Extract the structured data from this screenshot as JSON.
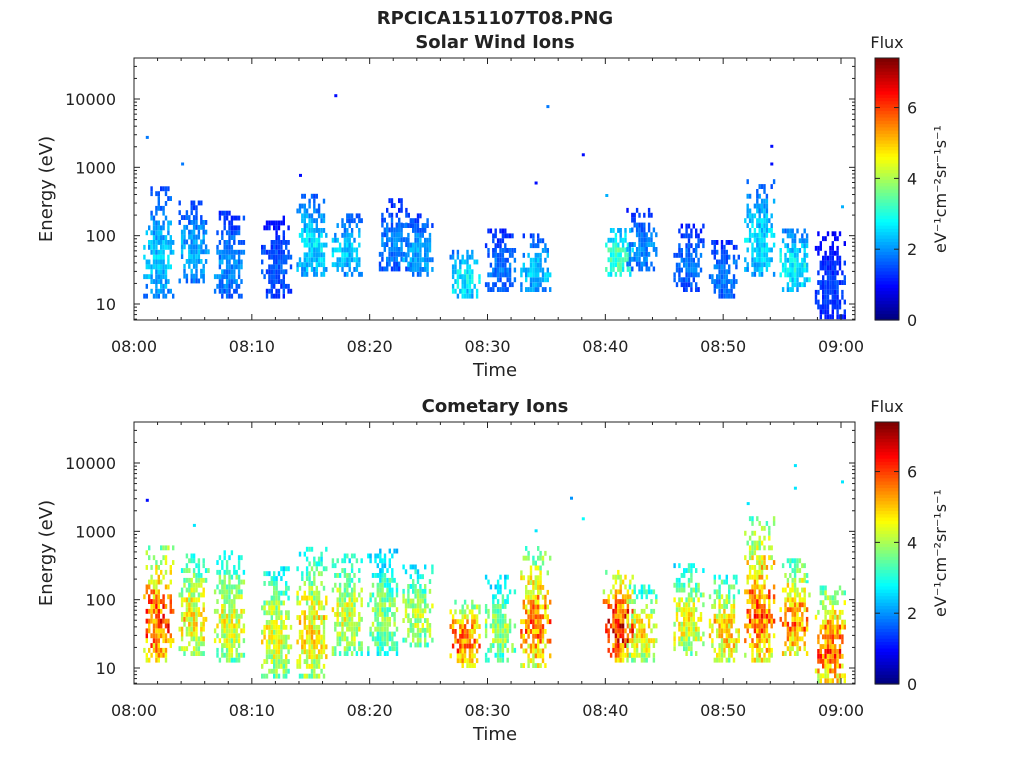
{
  "file_title": "RPCICA151107T08.PNG",
  "chart_data": [
    {
      "type": "heatmap",
      "title": "Solar Wind Ions",
      "xlabel": "Time",
      "ylabel": "Energy (eV)",
      "x_ticks": [
        "08:00",
        "08:10",
        "08:20",
        "08:30",
        "08:40",
        "08:50",
        "09:00"
      ],
      "y_ticks": [
        "10",
        "100",
        "1000",
        "10000"
      ],
      "y_scale": "log",
      "xlim": [
        "08:00",
        "09:00"
      ],
      "ylim": [
        6,
        45000
      ],
      "colorbar": {
        "label": "Flux",
        "unit": "eV⁻¹cm⁻²sr⁻¹s⁻¹",
        "ticks": [
          "0",
          "2",
          "4",
          "6"
        ],
        "range": [
          0,
          7.4
        ],
        "colormap": "jet"
      },
      "clusters": [
        {
          "time": "08:02",
          "e_low": 12,
          "e_high": 450,
          "flux": 2.4
        },
        {
          "time": "08:05",
          "e_low": 20,
          "e_high": 300,
          "flux": 2.2
        },
        {
          "time": "08:08",
          "e_low": 12,
          "e_high": 220,
          "flux": 2.0
        },
        {
          "time": "08:12",
          "e_low": 12,
          "e_high": 180,
          "flux": 1.6
        },
        {
          "time": "08:15",
          "e_low": 25,
          "e_high": 350,
          "flux": 2.6
        },
        {
          "time": "08:18",
          "e_low": 25,
          "e_high": 200,
          "flux": 2.4
        },
        {
          "time": "08:22",
          "e_low": 30,
          "e_high": 300,
          "flux": 1.9
        },
        {
          "time": "08:24",
          "e_low": 25,
          "e_high": 200,
          "flux": 2.2
        },
        {
          "time": "08:28",
          "e_low": 12,
          "e_high": 60,
          "flux": 2.8
        },
        {
          "time": "08:31",
          "e_low": 15,
          "e_high": 120,
          "flux": 1.8
        },
        {
          "time": "08:34",
          "e_low": 15,
          "e_high": 100,
          "flux": 2.4
        },
        {
          "time": "08:41",
          "e_low": 25,
          "e_high": 120,
          "flux": 3.4
        },
        {
          "time": "08:43",
          "e_low": 30,
          "e_high": 220,
          "flux": 2.0
        },
        {
          "time": "08:47",
          "e_low": 15,
          "e_high": 150,
          "flux": 1.8
        },
        {
          "time": "08:50",
          "e_low": 12,
          "e_high": 80,
          "flux": 1.9
        },
        {
          "time": "08:53",
          "e_low": 25,
          "e_high": 600,
          "flux": 2.6
        },
        {
          "time": "08:56",
          "e_low": 15,
          "e_high": 120,
          "flux": 2.8
        },
        {
          "time": "08:59",
          "e_low": 6,
          "e_high": 100,
          "flux": 1.4
        }
      ],
      "isolated": [
        {
          "time": "08:01",
          "energy": 2700,
          "flux": 1.8
        },
        {
          "time": "08:04",
          "energy": 1100,
          "flux": 1.8
        },
        {
          "time": "08:14",
          "energy": 750,
          "flux": 1.0
        },
        {
          "time": "08:17",
          "energy": 11000,
          "flux": 1.0
        },
        {
          "time": "08:35",
          "energy": 7600,
          "flux": 1.8
        },
        {
          "time": "08:34",
          "energy": 580,
          "flux": 1.0
        },
        {
          "time": "08:38",
          "energy": 1500,
          "flux": 1.0
        },
        {
          "time": "08:40",
          "energy": 380,
          "flux": 2.2
        },
        {
          "time": "08:54",
          "energy": 2000,
          "flux": 1.0
        },
        {
          "time": "08:54",
          "energy": 1100,
          "flux": 1.0
        },
        {
          "time": "09:00",
          "energy": 260,
          "flux": 2.2
        }
      ]
    },
    {
      "type": "heatmap",
      "title": "Cometary Ions",
      "xlabel": "Time",
      "ylabel": "Energy (eV)",
      "x_ticks": [
        "08:00",
        "08:10",
        "08:20",
        "08:30",
        "08:40",
        "08:50",
        "09:00"
      ],
      "y_ticks": [
        "10",
        "100",
        "1000",
        "10000"
      ],
      "y_scale": "log",
      "xlim": [
        "08:00",
        "09:00"
      ],
      "ylim": [
        6,
        45000
      ],
      "colorbar": {
        "label": "Flux",
        "unit": "eV⁻¹cm⁻²sr⁻¹s⁻¹",
        "ticks": [
          "0",
          "2",
          "4",
          "6"
        ],
        "range": [
          0,
          7.4
        ],
        "colormap": "jet"
      },
      "clusters": [
        {
          "time": "08:02",
          "e_low": 12,
          "e_high": 550,
          "flux": 6.0
        },
        {
          "time": "08:05",
          "e_low": 15,
          "e_high": 450,
          "flux": 4.8
        },
        {
          "time": "08:08",
          "e_low": 12,
          "e_high": 500,
          "flux": 4.5
        },
        {
          "time": "08:12",
          "e_low": 7,
          "e_high": 300,
          "flux": 4.5
        },
        {
          "time": "08:15",
          "e_low": 7,
          "e_high": 550,
          "flux": 4.8
        },
        {
          "time": "08:18",
          "e_low": 15,
          "e_high": 550,
          "flux": 4.4
        },
        {
          "time": "08:21",
          "e_low": 15,
          "e_high": 550,
          "flux": 3.8
        },
        {
          "time": "08:24",
          "e_low": 20,
          "e_high": 300,
          "flux": 4.2
        },
        {
          "time": "08:28",
          "e_low": 10,
          "e_high": 90,
          "flux": 5.8
        },
        {
          "time": "08:31",
          "e_low": 12,
          "e_high": 200,
          "flux": 4.0
        },
        {
          "time": "08:34",
          "e_low": 10,
          "e_high": 600,
          "flux": 5.6
        },
        {
          "time": "08:41",
          "e_low": 12,
          "e_high": 250,
          "flux": 6.4
        },
        {
          "time": "08:43",
          "e_low": 12,
          "e_high": 150,
          "flux": 4.8
        },
        {
          "time": "08:47",
          "e_low": 15,
          "e_high": 300,
          "flux": 4.6
        },
        {
          "time": "08:50",
          "e_low": 12,
          "e_high": 200,
          "flux": 5.0
        },
        {
          "time": "08:53",
          "e_low": 12,
          "e_high": 1500,
          "flux": 5.8
        },
        {
          "time": "08:56",
          "e_low": 15,
          "e_high": 350,
          "flux": 5.6
        },
        {
          "time": "08:59",
          "e_low": 6,
          "e_high": 150,
          "flux": 5.8
        }
      ],
      "isolated": [
        {
          "time": "08:01",
          "energy": 2800,
          "flux": 1.0
        },
        {
          "time": "08:05",
          "energy": 1200,
          "flux": 2.6
        },
        {
          "time": "08:34",
          "energy": 1000,
          "flux": 2.6
        },
        {
          "time": "08:37",
          "energy": 3000,
          "flux": 2.0
        },
        {
          "time": "08:38",
          "energy": 1500,
          "flux": 2.8
        },
        {
          "time": "08:52",
          "energy": 2500,
          "flux": 2.6
        },
        {
          "time": "08:56",
          "energy": 9000,
          "flux": 2.6
        },
        {
          "time": "08:56",
          "energy": 4200,
          "flux": 2.6
        },
        {
          "time": "09:00",
          "energy": 5200,
          "flux": 2.6
        },
        {
          "time": "08:57",
          "energy": 180,
          "flux": 3.0
        }
      ]
    }
  ]
}
